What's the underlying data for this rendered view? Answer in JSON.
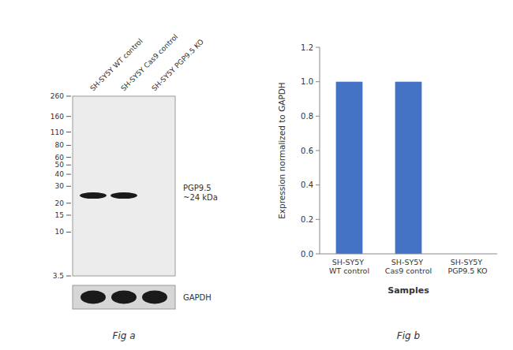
{
  "chart_data": [
    {
      "type": "blot",
      "title": "Fig a",
      "categories": [
        "SH-SY5Y WT control",
        "SH-SY5Y Cas9 control",
        "SH-SY5Y PGP9.5 KO"
      ],
      "log": "y",
      "ylim": [
        3.5,
        260
      ],
      "yticks": [
        260,
        160,
        110,
        80,
        60,
        50,
        40,
        30,
        20,
        15,
        10,
        3.5
      ],
      "color": "#1a1a1a",
      "series": [
        {
          "name": "PGP9.5\n~24 kDa",
          "values": [
            24,
            24,
            null
          ]
        }
      ],
      "annotations": [
        "GAPDH"
      ]
    },
    {
      "type": "bar",
      "title": "Fig b",
      "categories": [
        "SH-SY5Y WT control",
        "SH-SY5Y Cas9 control",
        "SH-SY5Y PGP9.5 KO"
      ],
      "values": [
        1.0,
        1.0,
        0.0
      ],
      "color": "#4472c4",
      "xlabel": "Samples",
      "ylabel": "Expression normalized to GAPDH",
      "ylim": [
        0,
        1.2
      ],
      "yticks": [
        {
          "value": 0,
          "label": "0.0"
        },
        0.2,
        0.4,
        0.6,
        0.8,
        {
          "value": 1.0,
          "label": "1.0"
        },
        1.2
      ]
    }
  ]
}
